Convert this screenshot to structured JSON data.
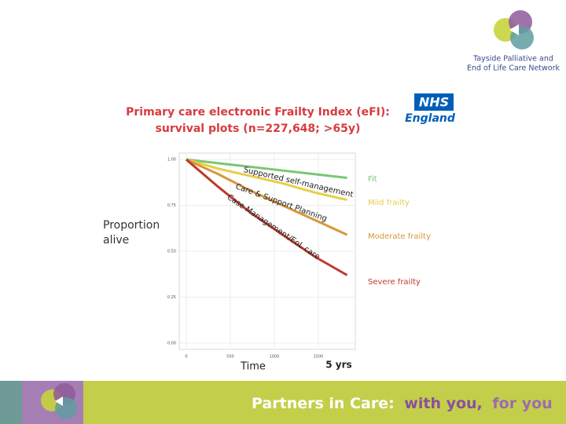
{
  "logo": {
    "lines": [
      "Tayside Palliative and",
      "End of Life Care Network"
    ]
  },
  "badge": {
    "lines": [
      "NHS",
      "England"
    ]
  },
  "footer": {
    "parts": [
      "Partners in Care:",
      "with you,",
      "for you"
    ]
  },
  "chart_data": {
    "type": "line",
    "title": [
      "Primary care electronic Frailty Index (eFI):",
      "survival plots (n=227,648;  >65y)"
    ],
    "y_label": [
      "Proportion",
      "alive"
    ],
    "x_label": "Time",
    "x_note": "5 yrs",
    "annotations": [
      "Supported self-management",
      "Care & Support Planning",
      "Case Management/EoL care"
    ],
    "x": [
      0,
      365,
      730,
      1095,
      1461,
      1826
    ],
    "series": [
      {
        "name": "Fit",
        "color": "#7cc576",
        "values": [
          1.0,
          0.98,
          0.96,
          0.94,
          0.92,
          0.9
        ]
      },
      {
        "name": "Mild frailty",
        "color": "#e6cf45",
        "values": [
          1.0,
          0.95,
          0.91,
          0.87,
          0.82,
          0.78
        ]
      },
      {
        "name": "Moderate frailty",
        "color": "#d9973a",
        "values": [
          1.0,
          0.92,
          0.83,
          0.75,
          0.67,
          0.59
        ]
      },
      {
        "name": "Severe frailty",
        "color": "#c0392b",
        "values": [
          1.0,
          0.85,
          0.71,
          0.59,
          0.47,
          0.37
        ]
      }
    ],
    "xlim": [
      -80,
      1920
    ],
    "ylim": [
      -0.035,
      1.035
    ],
    "xticks": [
      0,
      500,
      1000,
      1500
    ],
    "yticks": [
      {
        "value": 0,
        "label": "0.00"
      },
      {
        "value": 0.25,
        "label": "0.25"
      },
      {
        "value": 0.5,
        "label": "0.50"
      },
      {
        "value": 0.75,
        "label": "0.75"
      },
      {
        "value": 1,
        "label": "1.00"
      }
    ],
    "grid": true
  }
}
